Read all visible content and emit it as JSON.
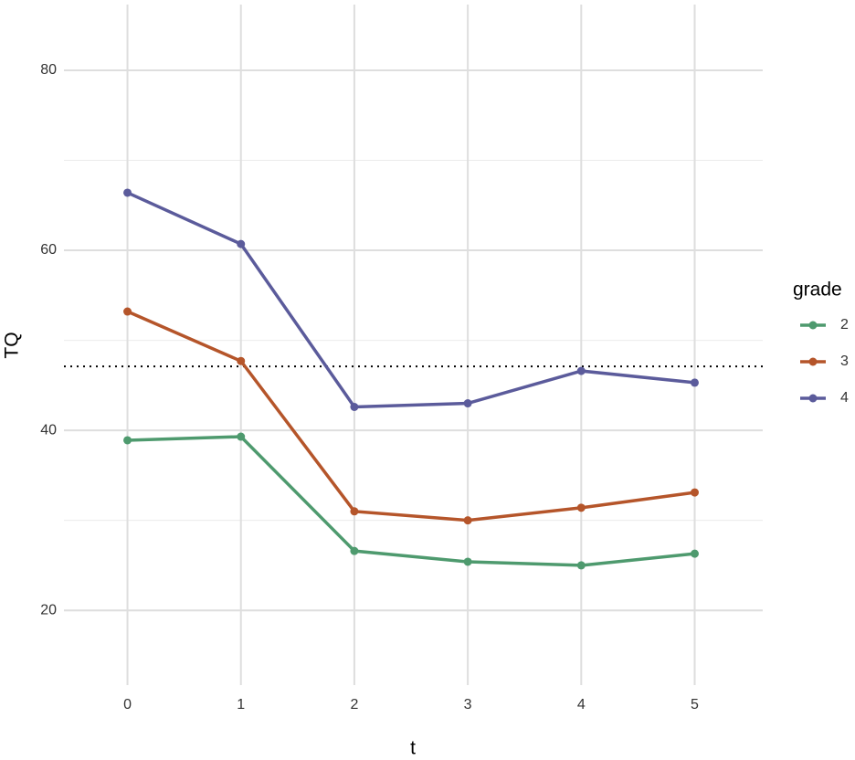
{
  "chart_data": {
    "type": "line",
    "x_label": "t",
    "y_label": "TQ",
    "x": [
      0,
      1,
      2,
      3,
      4,
      5
    ],
    "series": [
      {
        "name": "2",
        "color": "#4e9a6e",
        "values": [
          38.9,
          39.3,
          26.6,
          25.4,
          25.0,
          26.3
        ]
      },
      {
        "name": "3",
        "color": "#b5552a",
        "values": [
          53.2,
          47.7,
          31.0,
          30.0,
          31.4,
          33.1
        ]
      },
      {
        "name": "4",
        "color": "#5b5b9b",
        "values": [
          66.4,
          60.7,
          42.6,
          43.0,
          46.6,
          45.3
        ]
      }
    ],
    "xlim": [
      -0.56,
      5.6
    ],
    "ylim": [
      11.7,
      87.3
    ],
    "xticks": [
      0,
      1,
      2,
      3,
      4,
      5
    ],
    "yticks": [
      20,
      40,
      60,
      80
    ],
    "y_minor_ticks": [
      30,
      50,
      70
    ],
    "hline": 47.1,
    "legend_title": "grade",
    "legend_position": "right",
    "grid": true
  }
}
